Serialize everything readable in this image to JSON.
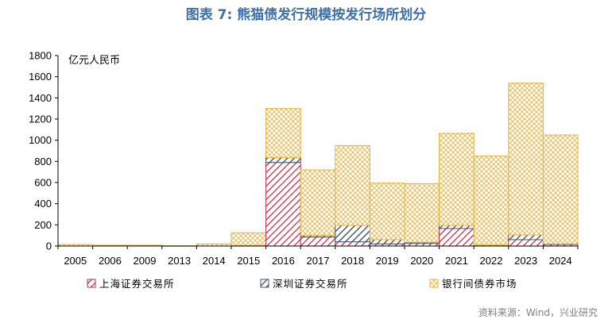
{
  "chart_data": {
    "type": "bar",
    "stacked": true,
    "title": "图表 7: 熊猫债发行规模按发行场所划分",
    "unit_label": "亿元人民币",
    "categories": [
      "2005",
      "2006",
      "2009",
      "2013",
      "2014",
      "2015",
      "2016",
      "2017",
      "2018",
      "2019",
      "2020",
      "2021",
      "2022",
      "2023",
      "2024"
    ],
    "series": [
      {
        "name": "上海证券交易所",
        "color": "#c0304a",
        "pattern": "diagonal-red",
        "values": [
          0,
          0,
          0,
          0,
          0,
          5,
          790,
          85,
          40,
          20,
          25,
          165,
          10,
          60,
          15
        ]
      },
      {
        "name": "深圳证券交易所",
        "color": "#44546a",
        "pattern": "diagonal-navy",
        "values": [
          0,
          0,
          0,
          0,
          0,
          0,
          45,
          15,
          155,
          40,
          10,
          30,
          0,
          45,
          5
        ]
      },
      {
        "name": "银行间债券市场",
        "color": "#e8b23b",
        "pattern": "crosshatch-gold",
        "values": [
          15,
          8,
          8,
          2,
          20,
          120,
          465,
          620,
          755,
          535,
          555,
          870,
          840,
          1435,
          1030
        ]
      }
    ],
    "ylim": [
      0,
      1800
    ],
    "yticks": [
      0,
      200,
      400,
      600,
      800,
      1000,
      1200,
      1400,
      1600,
      1800
    ],
    "grid": false,
    "legend_position": "bottom",
    "source": "资料来源：Wind，兴业研究"
  }
}
